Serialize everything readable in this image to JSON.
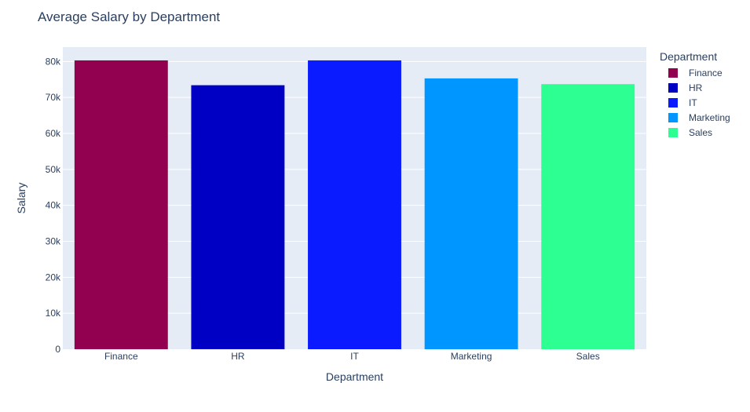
{
  "chart_data": {
    "type": "bar",
    "title": "Average Salary by Department",
    "xlabel": "Department",
    "ylabel": "Salary",
    "categories": [
      "Finance",
      "HR",
      "IT",
      "Marketing",
      "Sales"
    ],
    "values": [
      80300,
      73400,
      80300,
      75300,
      73700
    ],
    "colors": [
      "#920050",
      "#0000c4",
      "#0a1cff",
      "#0096ff",
      "#2dff92"
    ],
    "ylim": [
      0,
      84000
    ],
    "yticks": [
      0,
      10000,
      20000,
      30000,
      40000,
      50000,
      60000,
      70000,
      80000
    ],
    "ytick_labels": [
      "0",
      "10k",
      "20k",
      "30k",
      "40k",
      "50k",
      "60k",
      "70k",
      "80k"
    ],
    "grid": true,
    "plot_background": "#e5ecf6",
    "legend": {
      "title": "Department",
      "placement": "right",
      "items": [
        "Finance",
        "HR",
        "IT",
        "Marketing",
        "Sales"
      ]
    }
  }
}
